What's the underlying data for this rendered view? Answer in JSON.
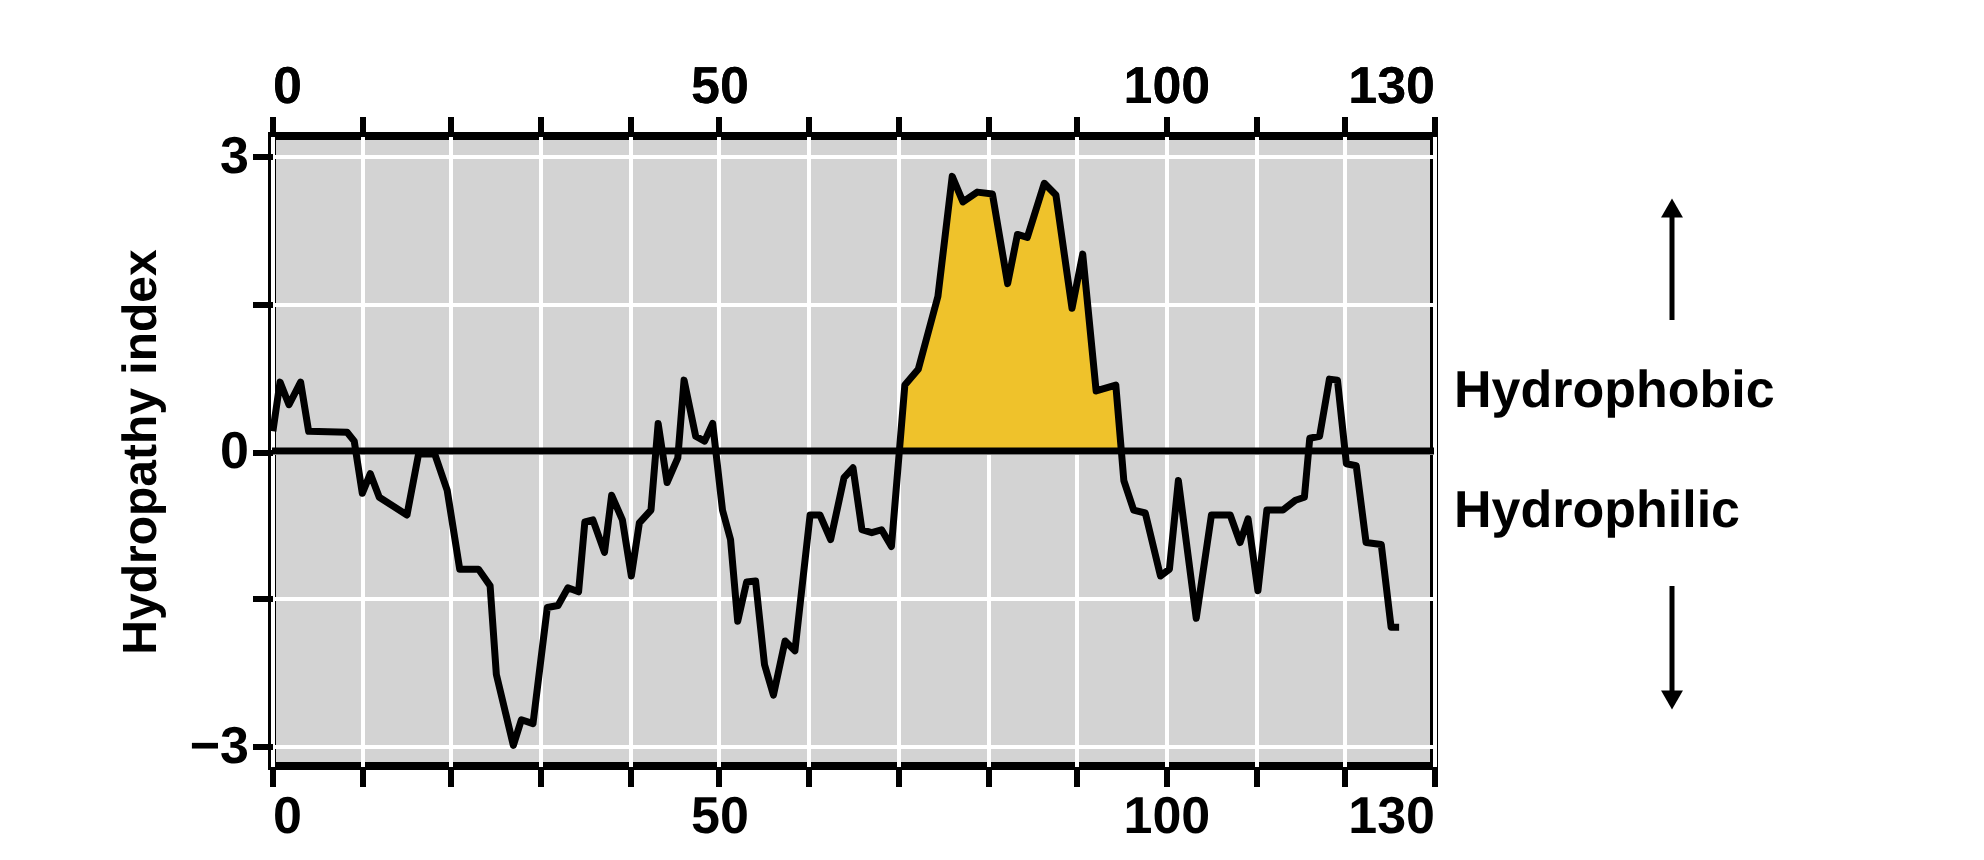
{
  "chart_data": {
    "type": "line",
    "ylabel": "Hydropathy index",
    "series": [
      {
        "type": "area",
        "color": "#efc22b",
        "x": [
          70.2,
          70.8,
          72.3,
          74.5,
          76.1,
          77.3,
          78.9,
          80.6,
          82.3,
          83.4,
          84.5,
          86.4,
          87.7,
          89.5,
          90.7,
          92.2,
          94.4,
          95.0
        ],
        "values": [
          0,
          0.67,
          0.83,
          1.57,
          2.79,
          2.53,
          2.63,
          2.61,
          1.7,
          2.2,
          2.17,
          2.72,
          2.6,
          1.45,
          2.0,
          0.61,
          0.67,
          0
        ]
      },
      {
        "color": "#000000",
        "line_style": "solid",
        "x": [
          0.1,
          0.9,
          1.9,
          3.2,
          4.1,
          8.4,
          9.2,
          10.1,
          11.0,
          12.0,
          15.1,
          16.4,
          18.2,
          19.6,
          21.0,
          23.1,
          24.4,
          25.1,
          27.0,
          27.9,
          29.2,
          30.8,
          32.0,
          33.1,
          34.3,
          35.0,
          35.9,
          37.2,
          38.0,
          39.2,
          40.2,
          41.1,
          42.4,
          43.2,
          44.2,
          45.4,
          46.1,
          47.4,
          48.4,
          49.3,
          50.4,
          51.3,
          52.1,
          53.1,
          54.1,
          55.1,
          56.1,
          57.4,
          58.5,
          60.2,
          61.3,
          62.5,
          64.0,
          65.0,
          66.0,
          67.1,
          68.2,
          69.3,
          70.8,
          72.3,
          74.5,
          76.1,
          77.3,
          78.9,
          80.6,
          82.3,
          83.4,
          84.5,
          86.4,
          87.7,
          89.5,
          90.7,
          92.2,
          94.4,
          95.3,
          96.4,
          97.7,
          99.4,
          100.4,
          101.4,
          103.4,
          105.1,
          107.2,
          108.3,
          109.2,
          110.3,
          111.3,
          113.1,
          114.5,
          115.5,
          116.1,
          117.2,
          118.3,
          119.2,
          120.2,
          121.3,
          122.4,
          124.1,
          125.2,
          126.1
        ],
        "values": [
          0.2,
          0.7,
          0.47,
          0.7,
          0.2,
          0.19,
          0.1,
          -0.43,
          -0.23,
          -0.47,
          -0.65,
          -0.03,
          -0.03,
          -0.4,
          -1.2,
          -1.2,
          -1.37,
          -2.27,
          -2.99,
          -2.73,
          -2.77,
          -1.59,
          -1.57,
          -1.39,
          -1.43,
          -0.72,
          -0.7,
          -1.03,
          -0.45,
          -0.7,
          -1.27,
          -0.73,
          -0.6,
          0.28,
          -0.32,
          -0.07,
          0.72,
          0.15,
          0.1,
          0.28,
          -0.6,
          -0.9,
          -1.73,
          -1.33,
          -1.32,
          -2.17,
          -2.48,
          -1.93,
          -2.03,
          -0.65,
          -0.65,
          -0.9,
          -0.27,
          -0.17,
          -0.8,
          -0.83,
          -0.8,
          -0.97,
          0.67,
          0.83,
          1.57,
          2.79,
          2.53,
          2.63,
          2.61,
          1.7,
          2.2,
          2.17,
          2.72,
          2.6,
          1.45,
          2.0,
          0.61,
          0.67,
          -0.3,
          -0.6,
          -0.63,
          -1.27,
          -1.2,
          -0.3,
          -1.7,
          -0.65,
          -0.65,
          -0.93,
          -0.69,
          -1.42,
          -0.6,
          -0.6,
          -0.5,
          -0.47,
          0.13,
          0.15,
          0.73,
          0.72,
          -0.13,
          -0.15,
          -0.93,
          -0.95,
          -1.79,
          -1.79
        ]
      }
    ],
    "xlim": [
      0,
      130
    ],
    "ylim": [
      -3.2,
      3.2
    ],
    "xticks": [
      0,
      {
        "value": 10,
        "label": null
      },
      {
        "value": 20,
        "label": null
      },
      {
        "value": 30,
        "label": null
      },
      {
        "value": 40,
        "label": null
      },
      50,
      {
        "value": 60,
        "label": null
      },
      {
        "value": 70,
        "label": null
      },
      {
        "value": 80,
        "label": null
      },
      {
        "value": 90,
        "label": null
      },
      100,
      {
        "value": 110,
        "label": null
      },
      {
        "value": 120,
        "label": null
      },
      130
    ],
    "x2lim": [
      0,
      130
    ],
    "x2ticks": [
      0,
      {
        "value": 10,
        "label": null
      },
      {
        "value": 20,
        "label": null
      },
      {
        "value": 30,
        "label": null
      },
      {
        "value": 40,
        "label": null
      },
      50,
      {
        "value": 60,
        "label": null
      },
      {
        "value": 70,
        "label": null
      },
      {
        "value": 80,
        "label": null
      },
      {
        "value": 90,
        "label": null
      },
      100,
      {
        "value": 110,
        "label": null
      },
      {
        "value": 120,
        "label": null
      },
      130
    ],
    "yticks": [
      {
        "value": -3,
        "label": "−3"
      },
      {
        "value": -1.5,
        "label": null
      },
      0,
      {
        "value": 1.5,
        "label": null
      },
      3
    ],
    "grid": true,
    "legend": false,
    "ref_lines": [
      {
        "axis": "y",
        "value": 0,
        "color": "#000000"
      }
    ],
    "annotations": [
      "Hydrophobic",
      "Hydrophilic"
    ]
  }
}
